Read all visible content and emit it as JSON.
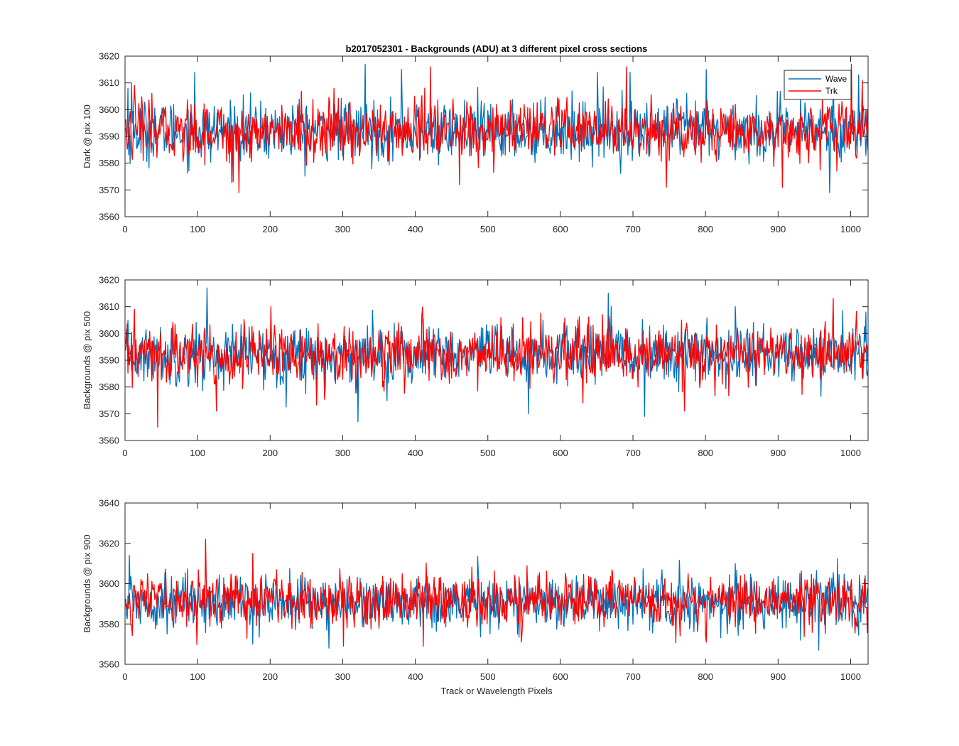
{
  "figure": {
    "title": "b2017052301 - Backgrounds (ADU) at 3 different pixel cross sections",
    "xlabel": "Track or Wavelength Pixels"
  },
  "series_styles": [
    {
      "name": "Wave",
      "color": "#0072BD"
    },
    {
      "name": "Trk",
      "color": "#FF0000"
    }
  ],
  "chart_data": [
    {
      "type": "line",
      "ylabel": "Dark @ pix 100",
      "xlim": [
        0,
        1024
      ],
      "ylim": [
        3560,
        3620
      ],
      "xticks": [
        0,
        100,
        200,
        300,
        400,
        500,
        600,
        700,
        800,
        900,
        1000
      ],
      "yticks": [
        3560,
        3570,
        3580,
        3590,
        3600,
        3610,
        3620
      ],
      "legend": {
        "position": "top-right",
        "entries": [
          "Wave",
          "Trk"
        ]
      },
      "noise": {
        "points": 1024,
        "mean_wave": 3592,
        "mean_trk": 3592,
        "spread": 5.5
      },
      "series": [
        {
          "name": "Wave",
          "notable": [
            [
              3,
              3608
            ],
            [
              8,
              3610
            ],
            [
              95,
              3614
            ],
            [
              330,
              3617
            ],
            [
              380,
              3615
            ],
            [
              650,
              3614
            ],
            [
              695,
              3614
            ],
            [
              800,
              3615
            ],
            [
              970,
              3569
            ],
            [
              975,
              3614
            ],
            [
              1010,
              3613
            ]
          ]
        },
        {
          "name": "Trk",
          "notable": [
            [
              12,
              3609
            ],
            [
              148,
              3573
            ],
            [
              156,
              3569
            ],
            [
              420,
              3616
            ],
            [
              460,
              3572
            ],
            [
              690,
              3616
            ],
            [
              745,
              3571
            ],
            [
              905,
              3571
            ],
            [
              1000,
              3617
            ],
            [
              1015,
              3611
            ]
          ]
        }
      ]
    },
    {
      "type": "line",
      "ylabel": "Backgrounds @ pix 500",
      "xlim": [
        0,
        1024
      ],
      "ylim": [
        3560,
        3620
      ],
      "xticks": [
        0,
        100,
        200,
        300,
        400,
        500,
        600,
        700,
        800,
        900,
        1000
      ],
      "yticks": [
        3560,
        3570,
        3580,
        3590,
        3600,
        3610,
        3620
      ],
      "noise": {
        "points": 1024,
        "mean_wave": 3592,
        "mean_trk": 3592,
        "spread": 5.5
      },
      "series": [
        {
          "name": "Wave",
          "notable": [
            [
              112,
              3617
            ],
            [
              320,
              3567
            ],
            [
              555,
              3570
            ],
            [
              665,
              3615
            ],
            [
              715,
              3569
            ],
            [
              840,
              3610
            ],
            [
              1020,
              3608
            ]
          ]
        },
        {
          "name": "Trk",
          "notable": [
            [
              12,
              3609
            ],
            [
              44,
              3565
            ],
            [
              125,
              3571
            ],
            [
              200,
              3610
            ],
            [
              630,
              3574
            ],
            [
              770,
              3571
            ],
            [
              975,
              3613
            ]
          ]
        }
      ]
    },
    {
      "type": "line",
      "ylabel": "Backgrounds @ pix 900",
      "xlim": [
        0,
        1024
      ],
      "ylim": [
        3560,
        3640
      ],
      "xticks": [
        0,
        100,
        200,
        300,
        400,
        500,
        600,
        700,
        800,
        900,
        1000
      ],
      "yticks": [
        3560,
        3580,
        3600,
        3620,
        3640
      ],
      "noise": {
        "points": 1024,
        "mean_wave": 3591,
        "mean_trk": 3592,
        "spread": 6.5
      },
      "series": [
        {
          "name": "Wave",
          "notable": [
            [
              5,
              3614
            ],
            [
              280,
              3568
            ],
            [
              540,
              3575
            ],
            [
              955,
              3567
            ]
          ]
        },
        {
          "name": "Trk",
          "notable": [
            [
              110,
              3622
            ],
            [
              175,
              3615
            ],
            [
              300,
              3569
            ],
            [
              410,
              3569
            ],
            [
              545,
              3571
            ],
            [
              800,
              3571
            ]
          ]
        }
      ]
    }
  ]
}
